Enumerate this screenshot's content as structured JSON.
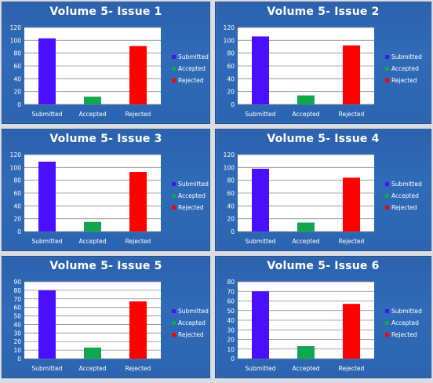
{
  "chart_data": [
    {
      "type": "bar",
      "title": "Volume 5- Issue 1",
      "categories": [
        "Submitted",
        "Accepted",
        "Rejected"
      ],
      "values": [
        103,
        12,
        91
      ],
      "colors": [
        "#4a0fff",
        "#10a84e",
        "#ff0000"
      ],
      "ylim": [
        0,
        120
      ],
      "yticks": [
        0,
        20,
        40,
        60,
        80,
        100,
        120
      ],
      "legend": [
        "Submitted",
        "Accepted",
        "Rejected"
      ],
      "legend_position": "right",
      "grid": true
    },
    {
      "type": "bar",
      "title": "Volume 5- Issue 2",
      "categories": [
        "Submitted",
        "Accepted",
        "Rejected"
      ],
      "values": [
        106,
        14,
        92
      ],
      "colors": [
        "#4a0fff",
        "#10a84e",
        "#ff0000"
      ],
      "ylim": [
        0,
        120
      ],
      "yticks": [
        0,
        20,
        40,
        60,
        80,
        100,
        120
      ],
      "legend": [
        "Submitted",
        "Accepted",
        "Rejected"
      ],
      "legend_position": "right",
      "grid": true
    },
    {
      "type": "bar",
      "title": "Volume 5- Issue 3",
      "categories": [
        "Submitted",
        "Accepted",
        "Rejected"
      ],
      "values": [
        109,
        15,
        93
      ],
      "colors": [
        "#4a0fff",
        "#10a84e",
        "#ff0000"
      ],
      "ylim": [
        0,
        120
      ],
      "yticks": [
        0,
        20,
        40,
        60,
        80,
        100,
        120
      ],
      "legend": [
        "Submitted",
        "Accepted",
        "Rejected"
      ],
      "legend_position": "right",
      "grid": true
    },
    {
      "type": "bar",
      "title": "Volume 5- Issue 4",
      "categories": [
        "Submitted",
        "Accepted",
        "Rejected"
      ],
      "values": [
        98,
        14,
        84
      ],
      "colors": [
        "#4a0fff",
        "#10a84e",
        "#ff0000"
      ],
      "ylim": [
        0,
        120
      ],
      "yticks": [
        0,
        20,
        40,
        60,
        80,
        100,
        120
      ],
      "legend": [
        "Submitted",
        "Accepted",
        "Rejected"
      ],
      "legend_position": "right",
      "grid": true
    },
    {
      "type": "bar",
      "title": "Volume 5- Issue 5",
      "categories": [
        "Submitted",
        "Accepted",
        "Rejected"
      ],
      "values": [
        80,
        13,
        67
      ],
      "colors": [
        "#4a0fff",
        "#10a84e",
        "#ff0000"
      ],
      "ylim": [
        0,
        90
      ],
      "yticks": [
        0,
        10,
        20,
        30,
        40,
        50,
        60,
        70,
        80,
        90
      ],
      "legend": [
        "Submitted",
        "Accepted",
        "Rejected"
      ],
      "legend_position": "right",
      "grid": true
    },
    {
      "type": "bar",
      "title": "Volume 5- Issue 6",
      "categories": [
        "Submitted",
        "Accepted",
        "Rejected"
      ],
      "values": [
        70,
        13,
        57
      ],
      "colors": [
        "#4a0fff",
        "#10a84e",
        "#ff0000"
      ],
      "ylim": [
        0,
        80
      ],
      "yticks": [
        0,
        10,
        20,
        30,
        40,
        50,
        60,
        70,
        80
      ],
      "legend": [
        "Submitted",
        "Accepted",
        "Rejected"
      ],
      "legend_position": "right",
      "grid": true
    }
  ]
}
